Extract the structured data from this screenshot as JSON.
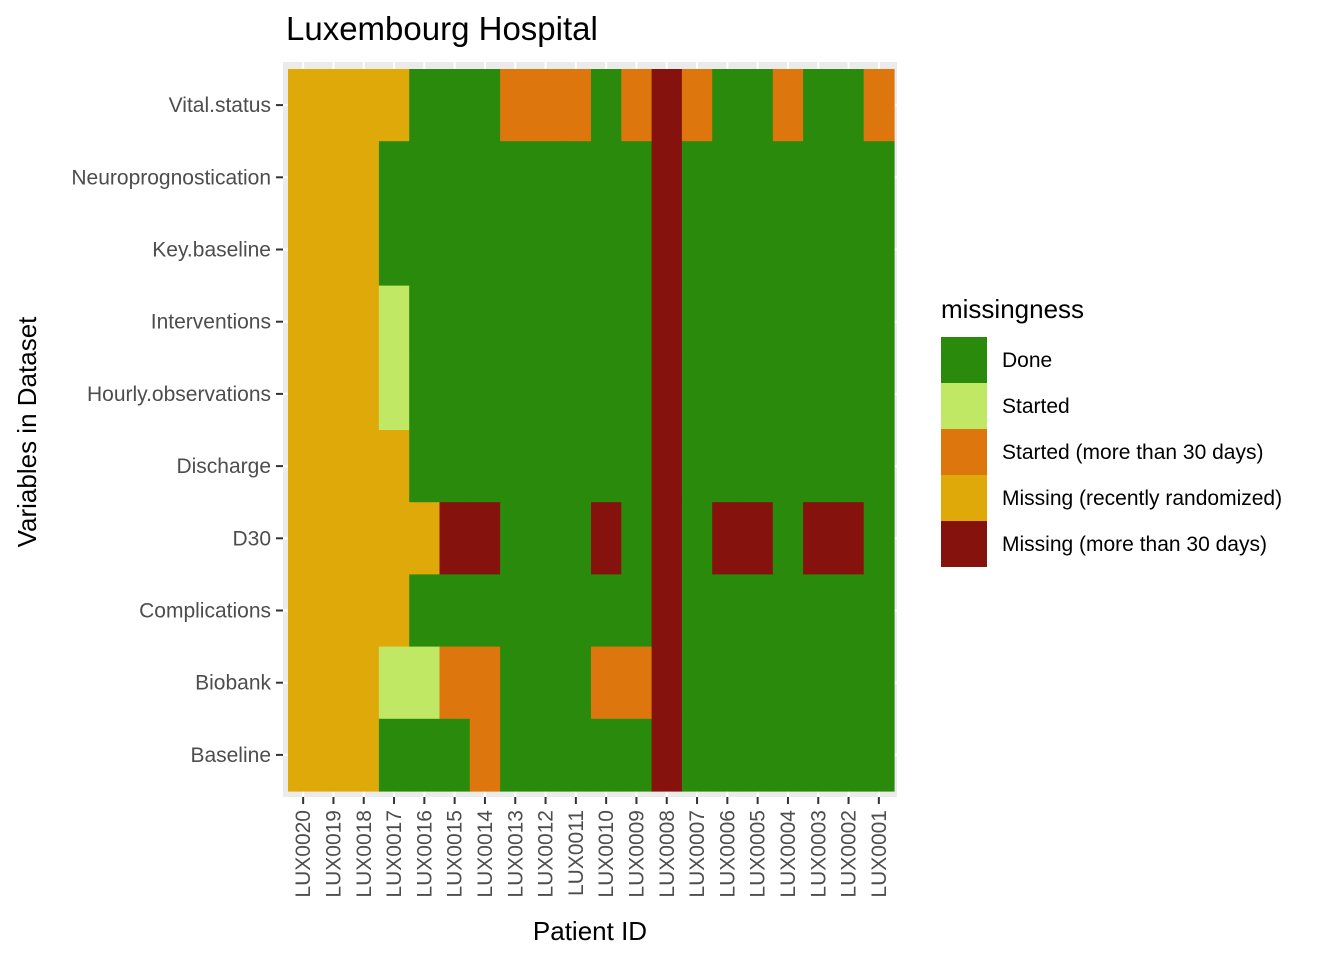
{
  "chart_data": {
    "type": "heatmap",
    "title": "Luxembourg Hospital",
    "xlabel": "Patient ID",
    "ylabel": "Variables in Dataset",
    "x": [
      "LUX0020",
      "LUX0019",
      "LUX0018",
      "LUX0017",
      "LUX0016",
      "LUX0015",
      "LUX0014",
      "LUX0013",
      "LUX0012",
      "LUX0011",
      "LUX0010",
      "LUX0009",
      "LUX0008",
      "LUX0007",
      "LUX0006",
      "LUX0005",
      "LUX0004",
      "LUX0003",
      "LUX0002",
      "LUX0001"
    ],
    "y": [
      "Vital.status",
      "Neuroprognostication",
      "Key.baseline",
      "Interventions",
      "Hourly.observations",
      "Discharge",
      "D30",
      "Complications",
      "Biobank",
      "Baseline"
    ],
    "legend": {
      "title": "missingness",
      "position": "right",
      "entries": [
        {
          "key": "D",
          "label": "Done",
          "color": "#2a8a0b"
        },
        {
          "key": "S",
          "label": "Started",
          "color": "#c1e864"
        },
        {
          "key": "O",
          "label": "Started (more than 30 days)",
          "color": "#de760e"
        },
        {
          "key": "R",
          "label": "Missing (recently randomized)",
          "color": "#e0a90a"
        },
        {
          "key": "M",
          "label": "Missing (more than 30 days)",
          "color": "#85120c"
        }
      ]
    },
    "cells": [
      [
        "R",
        "R",
        "R",
        "R",
        "D",
        "D",
        "D",
        "O",
        "O",
        "O",
        "D",
        "O",
        "M",
        "O",
        "D",
        "D",
        "O",
        "D",
        "D",
        "O"
      ],
      [
        "R",
        "R",
        "R",
        "D",
        "D",
        "D",
        "D",
        "D",
        "D",
        "D",
        "D",
        "D",
        "M",
        "D",
        "D",
        "D",
        "D",
        "D",
        "D",
        "D"
      ],
      [
        "R",
        "R",
        "R",
        "D",
        "D",
        "D",
        "D",
        "D",
        "D",
        "D",
        "D",
        "D",
        "M",
        "D",
        "D",
        "D",
        "D",
        "D",
        "D",
        "D"
      ],
      [
        "R",
        "R",
        "R",
        "S",
        "D",
        "D",
        "D",
        "D",
        "D",
        "D",
        "D",
        "D",
        "M",
        "D",
        "D",
        "D",
        "D",
        "D",
        "D",
        "D"
      ],
      [
        "R",
        "R",
        "R",
        "S",
        "D",
        "D",
        "D",
        "D",
        "D",
        "D",
        "D",
        "D",
        "M",
        "D",
        "D",
        "D",
        "D",
        "D",
        "D",
        "D"
      ],
      [
        "R",
        "R",
        "R",
        "R",
        "D",
        "D",
        "D",
        "D",
        "D",
        "D",
        "D",
        "D",
        "M",
        "D",
        "D",
        "D",
        "D",
        "D",
        "D",
        "D"
      ],
      [
        "R",
        "R",
        "R",
        "R",
        "R",
        "M",
        "M",
        "D",
        "D",
        "D",
        "M",
        "D",
        "M",
        "D",
        "M",
        "M",
        "D",
        "M",
        "M",
        "D"
      ],
      [
        "R",
        "R",
        "R",
        "R",
        "D",
        "D",
        "D",
        "D",
        "D",
        "D",
        "D",
        "D",
        "M",
        "D",
        "D",
        "D",
        "D",
        "D",
        "D",
        "D"
      ],
      [
        "R",
        "R",
        "R",
        "S",
        "S",
        "O",
        "O",
        "D",
        "D",
        "D",
        "O",
        "O",
        "M",
        "D",
        "D",
        "D",
        "D",
        "D",
        "D",
        "D"
      ],
      [
        "R",
        "R",
        "R",
        "D",
        "D",
        "D",
        "O",
        "D",
        "D",
        "D",
        "D",
        "D",
        "M",
        "D",
        "D",
        "D",
        "D",
        "D",
        "D",
        "D"
      ]
    ],
    "panel_color": "#ebebeb",
    "grid": true
  }
}
